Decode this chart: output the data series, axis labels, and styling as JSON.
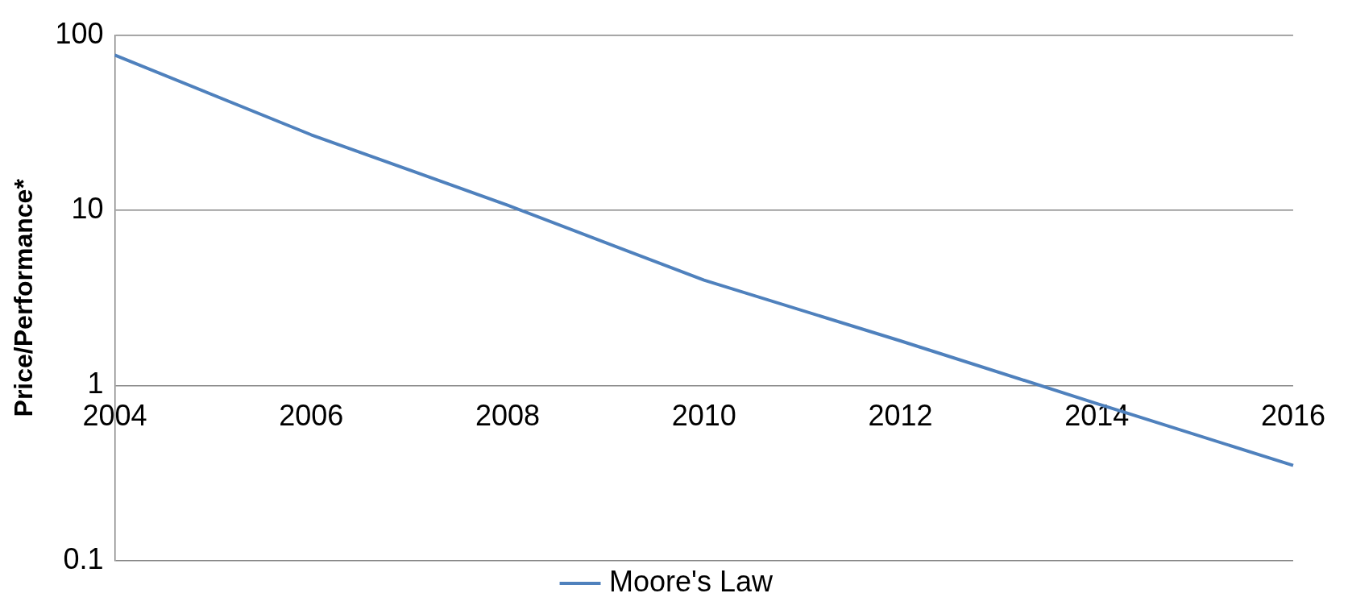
{
  "chart_data": {
    "type": "line",
    "ylabel": "Price/Performance*",
    "categories": [
      "2004",
      "2006",
      "2008",
      "2010",
      "2012",
      "2014",
      "2016"
    ],
    "series": [
      {
        "name": "Moore's Law",
        "color": "#4f81bd",
        "values": [
          77,
          27,
          10.7,
          4,
          1.8,
          0.79,
          0.35
        ]
      }
    ],
    "log": "y",
    "ylim": [
      0.1,
      100
    ],
    "yticks": [
      0.1,
      1,
      10,
      100
    ],
    "grid": "y",
    "legend": "bottom",
    "marker": "none",
    "line_style": "solid"
  }
}
